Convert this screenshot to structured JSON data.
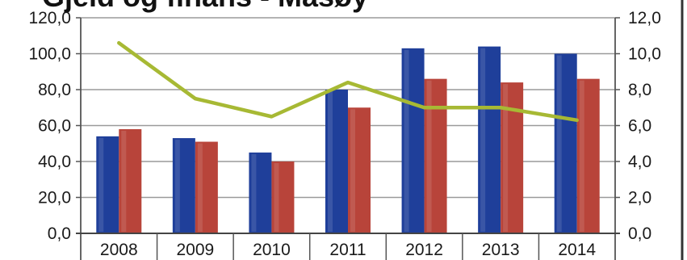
{
  "chart_data": {
    "type": "bar",
    "title": "Gjeld og finans - Masøy",
    "categories": [
      "2008",
      "2009",
      "2010",
      "2011",
      "2012",
      "2013",
      "2014"
    ],
    "series": [
      {
        "values": [
          54,
          53,
          45,
          80,
          103,
          104,
          100
        ],
        "color": "#1f3f9a",
        "axis": "left",
        "type": "bar"
      },
      {
        "values": [
          58,
          51,
          40,
          70,
          86,
          84,
          86
        ],
        "color": "#b8443a",
        "axis": "left",
        "type": "bar"
      },
      {
        "values": [
          10.6,
          7.5,
          6.5,
          8.4,
          7.0,
          7.0,
          6.3
        ],
        "color": "#a7b934",
        "axis": "right",
        "type": "line"
      }
    ],
    "y_left": {
      "min": 0,
      "max": 120,
      "ticks": [
        "0,0",
        "20,0",
        "40,0",
        "60,0",
        "80,0",
        "100,0",
        "120,0"
      ]
    },
    "y_right": {
      "min": 0,
      "max": 12,
      "ticks": [
        "0,0",
        "2,0",
        "4,0",
        "6,0",
        "8,0",
        "10,0",
        "12,0"
      ]
    },
    "grid": true,
    "legend": "none"
  }
}
